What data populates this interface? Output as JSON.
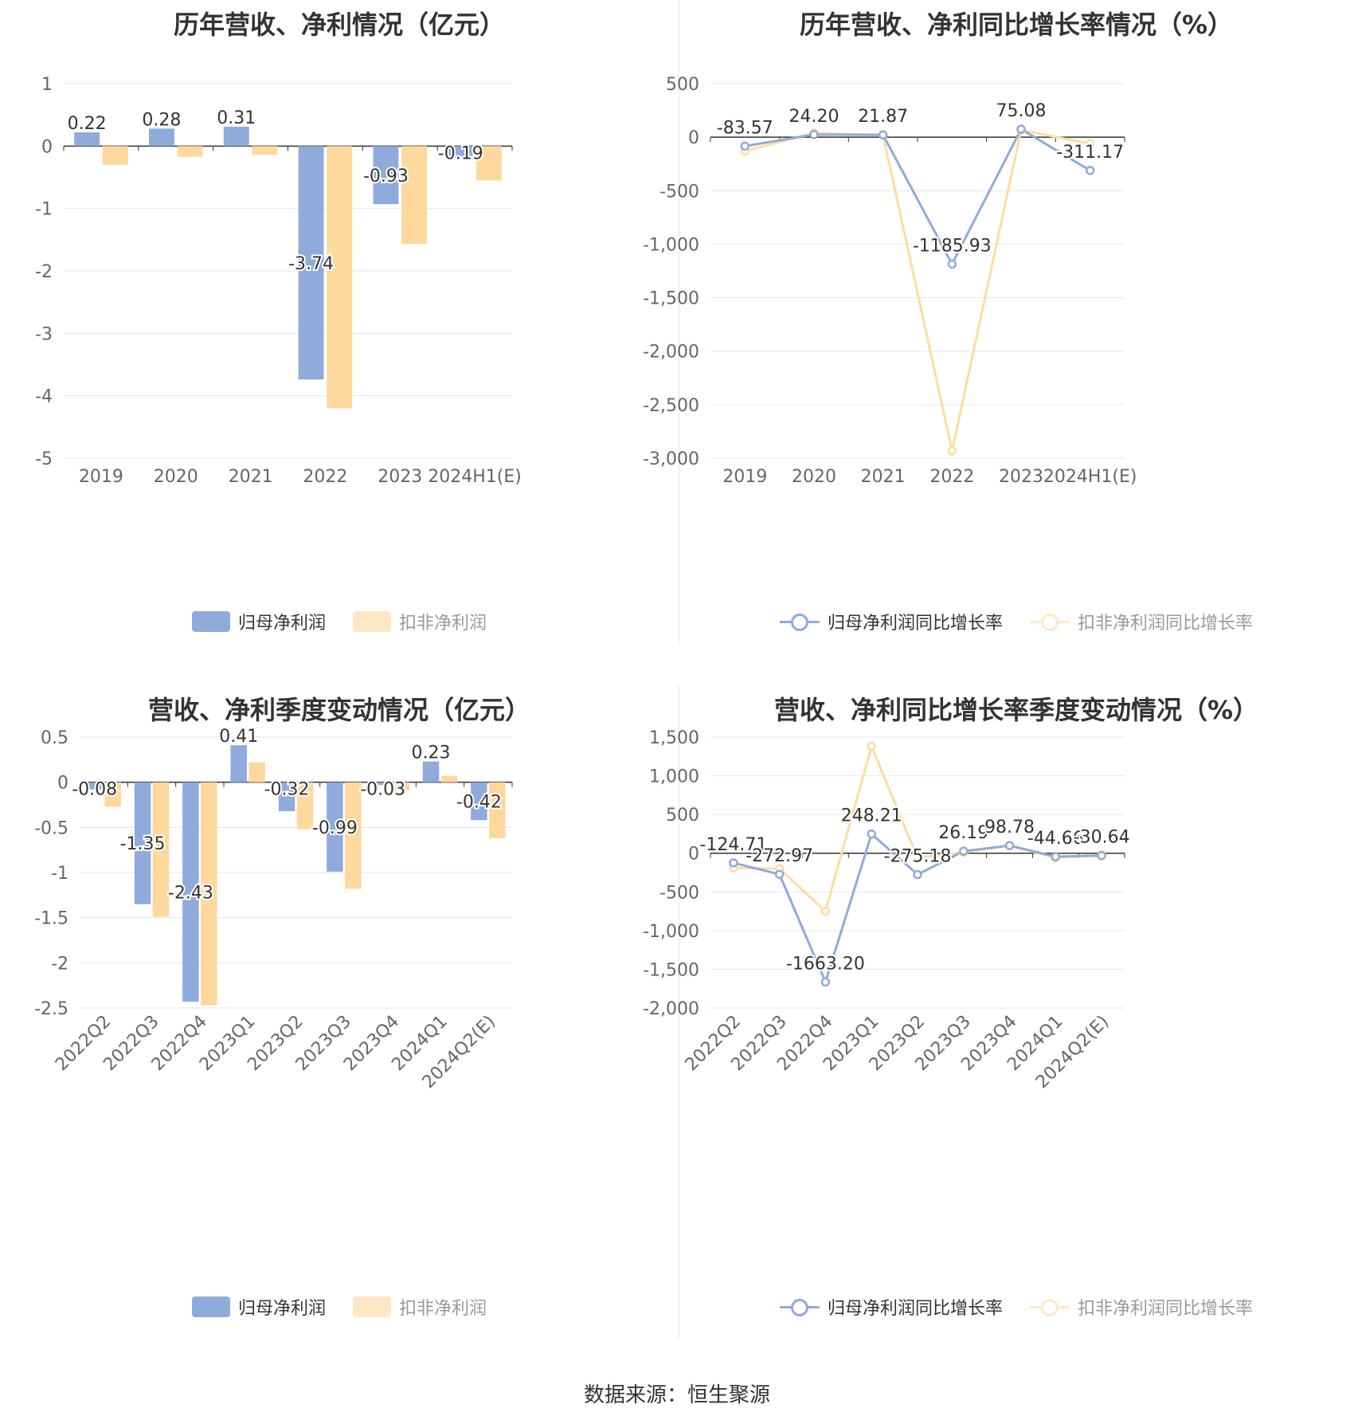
{
  "colors": {
    "blue": "#8eabdb",
    "yellow": "#fed89c",
    "yellow_line": "#fddc9e",
    "grid": "#e0e6f1",
    "axis": "#333333"
  },
  "source": "数据来源：恒生聚源",
  "charts": [
    {
      "title": "历年营收、净利情况（亿元）",
      "legend": [
        {
          "label": "归母净利润",
          "active": true
        },
        {
          "label": "扣非净利润",
          "active": false
        }
      ],
      "chart_data": {
        "type": "bar",
        "categories": [
          "2019",
          "2020",
          "2021",
          "2022",
          "2023",
          "2024H1(E)"
        ],
        "ylim": [
          -5,
          1
        ],
        "yticks": [
          {
            "v": 1,
            "label": "1"
          },
          {
            "v": 0,
            "label": "0"
          },
          {
            "v": -1,
            "label": "-1"
          },
          {
            "v": -2,
            "label": "-2"
          },
          {
            "v": -3,
            "label": "-3"
          },
          {
            "v": -4,
            "label": "-4"
          },
          {
            "v": -5,
            "label": "-5"
          }
        ],
        "series": [
          {
            "name": "归母净利润",
            "values": [
              0.22,
              0.28,
              0.31,
              -3.74,
              -0.93,
              -0.19
            ],
            "labels": [
              "0.22",
              "0.28",
              "0.31",
              "-3.74",
              "-0.93",
              "-0.19"
            ]
          },
          {
            "name": "扣非净利润",
            "values": [
              -0.3,
              -0.17,
              -0.14,
              -4.2,
              -1.57,
              -0.55
            ]
          }
        ]
      }
    },
    {
      "title": "历年营收、净利同比增长率情况（%）",
      "legend": [
        {
          "label": "归母净利润同比增长率",
          "active": true
        },
        {
          "label": "扣非净利润同比增长率",
          "active": false
        }
      ],
      "chart_data": {
        "type": "line",
        "categories": [
          "2019",
          "2020",
          "2021",
          "2022",
          "2023",
          "2024H1(E)"
        ],
        "ylim": [
          -3000,
          500
        ],
        "yticks": [
          {
            "v": 500,
            "label": "500"
          },
          {
            "v": 0,
            "label": "0"
          },
          {
            "v": -500,
            "label": "-500"
          },
          {
            "v": -1000,
            "label": "-1,000"
          },
          {
            "v": -1500,
            "label": "-1,500"
          },
          {
            "v": -2000,
            "label": "-2,000"
          },
          {
            "v": -2500,
            "label": "-2,500"
          },
          {
            "v": -3000,
            "label": "-3,000"
          }
        ],
        "series": [
          {
            "name": "归母净利润同比增长率",
            "values": [
              -83.57,
              24.2,
              21.87,
              -1185.93,
              75.08,
              -311.17
            ],
            "labels": [
              "-83.57",
              "24.20",
              "21.87",
              "-1185.93",
              "75.08",
              "-311.17"
            ]
          },
          {
            "name": "扣非净利润同比增长率",
            "values": [
              -130,
              40,
              20,
              -2930,
              65,
              -60
            ]
          }
        ]
      }
    },
    {
      "title": "营收、净利季度变动情况（亿元）",
      "legend": [
        {
          "label": "归母净利润",
          "active": true
        },
        {
          "label": "扣非净利润",
          "active": false
        }
      ],
      "chart_data": {
        "type": "bar",
        "categories": [
          "2022Q2",
          "2022Q3",
          "2022Q4",
          "2023Q1",
          "2023Q2",
          "2023Q3",
          "2023Q4",
          "2024Q1",
          "2024Q2(E)"
        ],
        "ylim": [
          -2.5,
          0.5
        ],
        "yticks": [
          {
            "v": 0.5,
            "label": "0.5"
          },
          {
            "v": 0,
            "label": "0"
          },
          {
            "v": -0.5,
            "label": "-0.5"
          },
          {
            "v": -1,
            "label": "-1"
          },
          {
            "v": -1.5,
            "label": "-1.5"
          },
          {
            "v": -2,
            "label": "-2"
          },
          {
            "v": -2.5,
            "label": "-2.5"
          }
        ],
        "series": [
          {
            "name": "归母净利润",
            "values": [
              -0.08,
              -1.35,
              -2.43,
              0.41,
              -0.32,
              -0.99,
              -0.03,
              0.23,
              -0.42
            ],
            "labels": [
              "-0.08",
              "-1.35",
              "-2.43",
              "0.41",
              "-0.32",
              "-0.99",
              "-0.03",
              "0.23",
              "-0.42"
            ]
          },
          {
            "name": "扣非净利润",
            "values": [
              -0.27,
              -1.49,
              -2.47,
              0.22,
              -0.52,
              -1.18,
              -0.09,
              0.07,
              -0.62
            ]
          }
        ]
      }
    },
    {
      "title": "营收、净利同比增长率季度变动情况（%）",
      "legend": [
        {
          "label": "归母净利润同比增长率",
          "active": true
        },
        {
          "label": "扣非净利润同比增长率",
          "active": false
        }
      ],
      "chart_data": {
        "type": "line",
        "categories": [
          "2022Q2",
          "2022Q3",
          "2022Q4",
          "2023Q1",
          "2023Q2",
          "2023Q3",
          "2023Q4",
          "2024Q1",
          "2024Q2(E)"
        ],
        "ylim": [
          -2000,
          1500
        ],
        "yticks": [
          {
            "v": 1500,
            "label": "1,500"
          },
          {
            "v": 1000,
            "label": "1,000"
          },
          {
            "v": 500,
            "label": "500"
          },
          {
            "v": 0,
            "label": "0"
          },
          {
            "v": -500,
            "label": "-500"
          },
          {
            "v": -1000,
            "label": "-1,000"
          },
          {
            "v": -1500,
            "label": "-1,500"
          },
          {
            "v": -2000,
            "label": "-2,000"
          }
        ],
        "series": [
          {
            "name": "归母净利润同比增长率",
            "values": [
              -124.71,
              -272.97,
              -1663.2,
              248.21,
              -275.18,
              26.19,
              98.78,
              -44.66,
              -30.64
            ],
            "labels": [
              "-124.71",
              "-272.97",
              "-1663.20",
              "248.21",
              "-275.18",
              "26.19",
              "98.78",
              "-44.66",
              "-30.64"
            ]
          },
          {
            "name": "扣非净利润同比增长率",
            "values": [
              -190,
              -200,
              -750,
              1380,
              -60,
              10,
              100,
              -60,
              -20
            ]
          }
        ]
      }
    }
  ]
}
